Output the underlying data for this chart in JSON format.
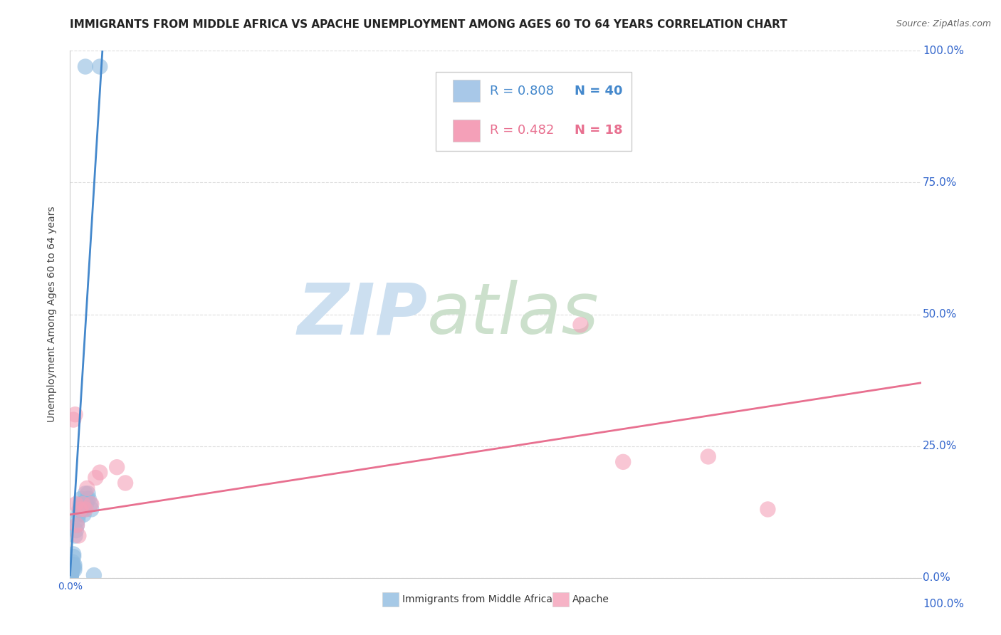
{
  "title": "IMMIGRANTS FROM MIDDLE AFRICA VS APACHE UNEMPLOYMENT AMONG AGES 60 TO 64 YEARS CORRELATION CHART",
  "source": "Source: ZipAtlas.com",
  "ylabel": "Unemployment Among Ages 60 to 64 years",
  "legend_entries": [
    {
      "label": "Immigrants from Middle Africa",
      "color": "#a8c8e8",
      "R": 0.808,
      "N": 40
    },
    {
      "label": "Apache",
      "color": "#f4a0b8",
      "R": 0.482,
      "N": 18
    }
  ],
  "blue_scatter_x": [
    0.001,
    0.001,
    0.001,
    0.001,
    0.001,
    0.001,
    0.001,
    0.002,
    0.002,
    0.002,
    0.003,
    0.003,
    0.003,
    0.004,
    0.004,
    0.005,
    0.005,
    0.005,
    0.006,
    0.007,
    0.008,
    0.009,
    0.01,
    0.011,
    0.012,
    0.013,
    0.014,
    0.015,
    0.016,
    0.017,
    0.018,
    0.019,
    0.02,
    0.021,
    0.022,
    0.024,
    0.025,
    0.028,
    0.018,
    0.035
  ],
  "blue_scatter_y": [
    0.002,
    0.003,
    0.004,
    0.005,
    0.006,
    0.007,
    0.008,
    0.01,
    0.012,
    0.015,
    0.02,
    0.025,
    0.03,
    0.04,
    0.045,
    0.015,
    0.02,
    0.025,
    0.08,
    0.09,
    0.1,
    0.11,
    0.12,
    0.13,
    0.14,
    0.15,
    0.13,
    0.14,
    0.12,
    0.13,
    0.16,
    0.14,
    0.15,
    0.16,
    0.15,
    0.14,
    0.13,
    0.005,
    0.97,
    0.97
  ],
  "pink_scatter_x": [
    0.004,
    0.006,
    0.007,
    0.008,
    0.01,
    0.012,
    0.015,
    0.018,
    0.02,
    0.025,
    0.03,
    0.035,
    0.055,
    0.065,
    0.6,
    0.65,
    0.75,
    0.82
  ],
  "pink_scatter_y": [
    0.3,
    0.31,
    0.14,
    0.1,
    0.08,
    0.13,
    0.14,
    0.13,
    0.17,
    0.14,
    0.19,
    0.2,
    0.21,
    0.18,
    0.48,
    0.22,
    0.23,
    0.13
  ],
  "blue_line_x": [
    0.0,
    0.038
  ],
  "blue_line_y": [
    0.005,
    1.0
  ],
  "pink_line_x": [
    0.0,
    1.0
  ],
  "pink_line_y": [
    0.12,
    0.37
  ],
  "xlim": [
    0.0,
    1.0
  ],
  "ylim": [
    0.0,
    1.0
  ],
  "background_color": "#ffffff",
  "grid_color": "#dddddd",
  "blue_color": "#90bce0",
  "pink_color": "#f4a0b8",
  "blue_line_color": "#4488cc",
  "pink_line_color": "#e87090",
  "watermark_zip": "ZIP",
  "watermark_atlas": "atlas",
  "watermark_color_zip": "#ccdff0",
  "watermark_color_atlas": "#cce0cc",
  "title_fontsize": 11,
  "axis_label_fontsize": 10,
  "tick_fontsize": 10
}
